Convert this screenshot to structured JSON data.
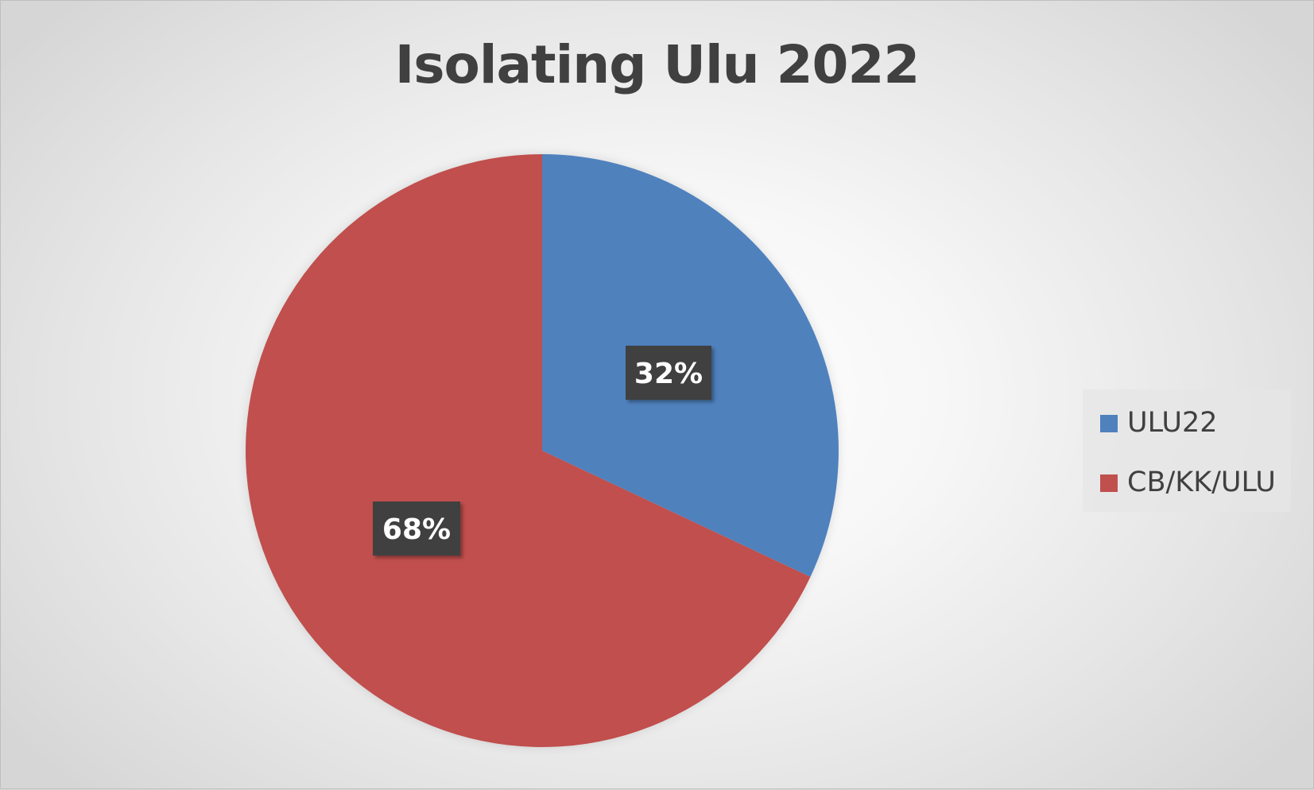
{
  "chart_data": {
    "type": "pie",
    "title": "Isolating Ulu 2022",
    "slices": [
      {
        "label": "ULU22",
        "value": 32,
        "display": "32%",
        "color": "#4f81bd"
      },
      {
        "label": "CB/KK/ULU",
        "value": 68,
        "display": "68%",
        "color": "#c0504d"
      }
    ],
    "legend_position": "right",
    "data_label_background": "#404040",
    "data_label_color": "#ffffff"
  }
}
